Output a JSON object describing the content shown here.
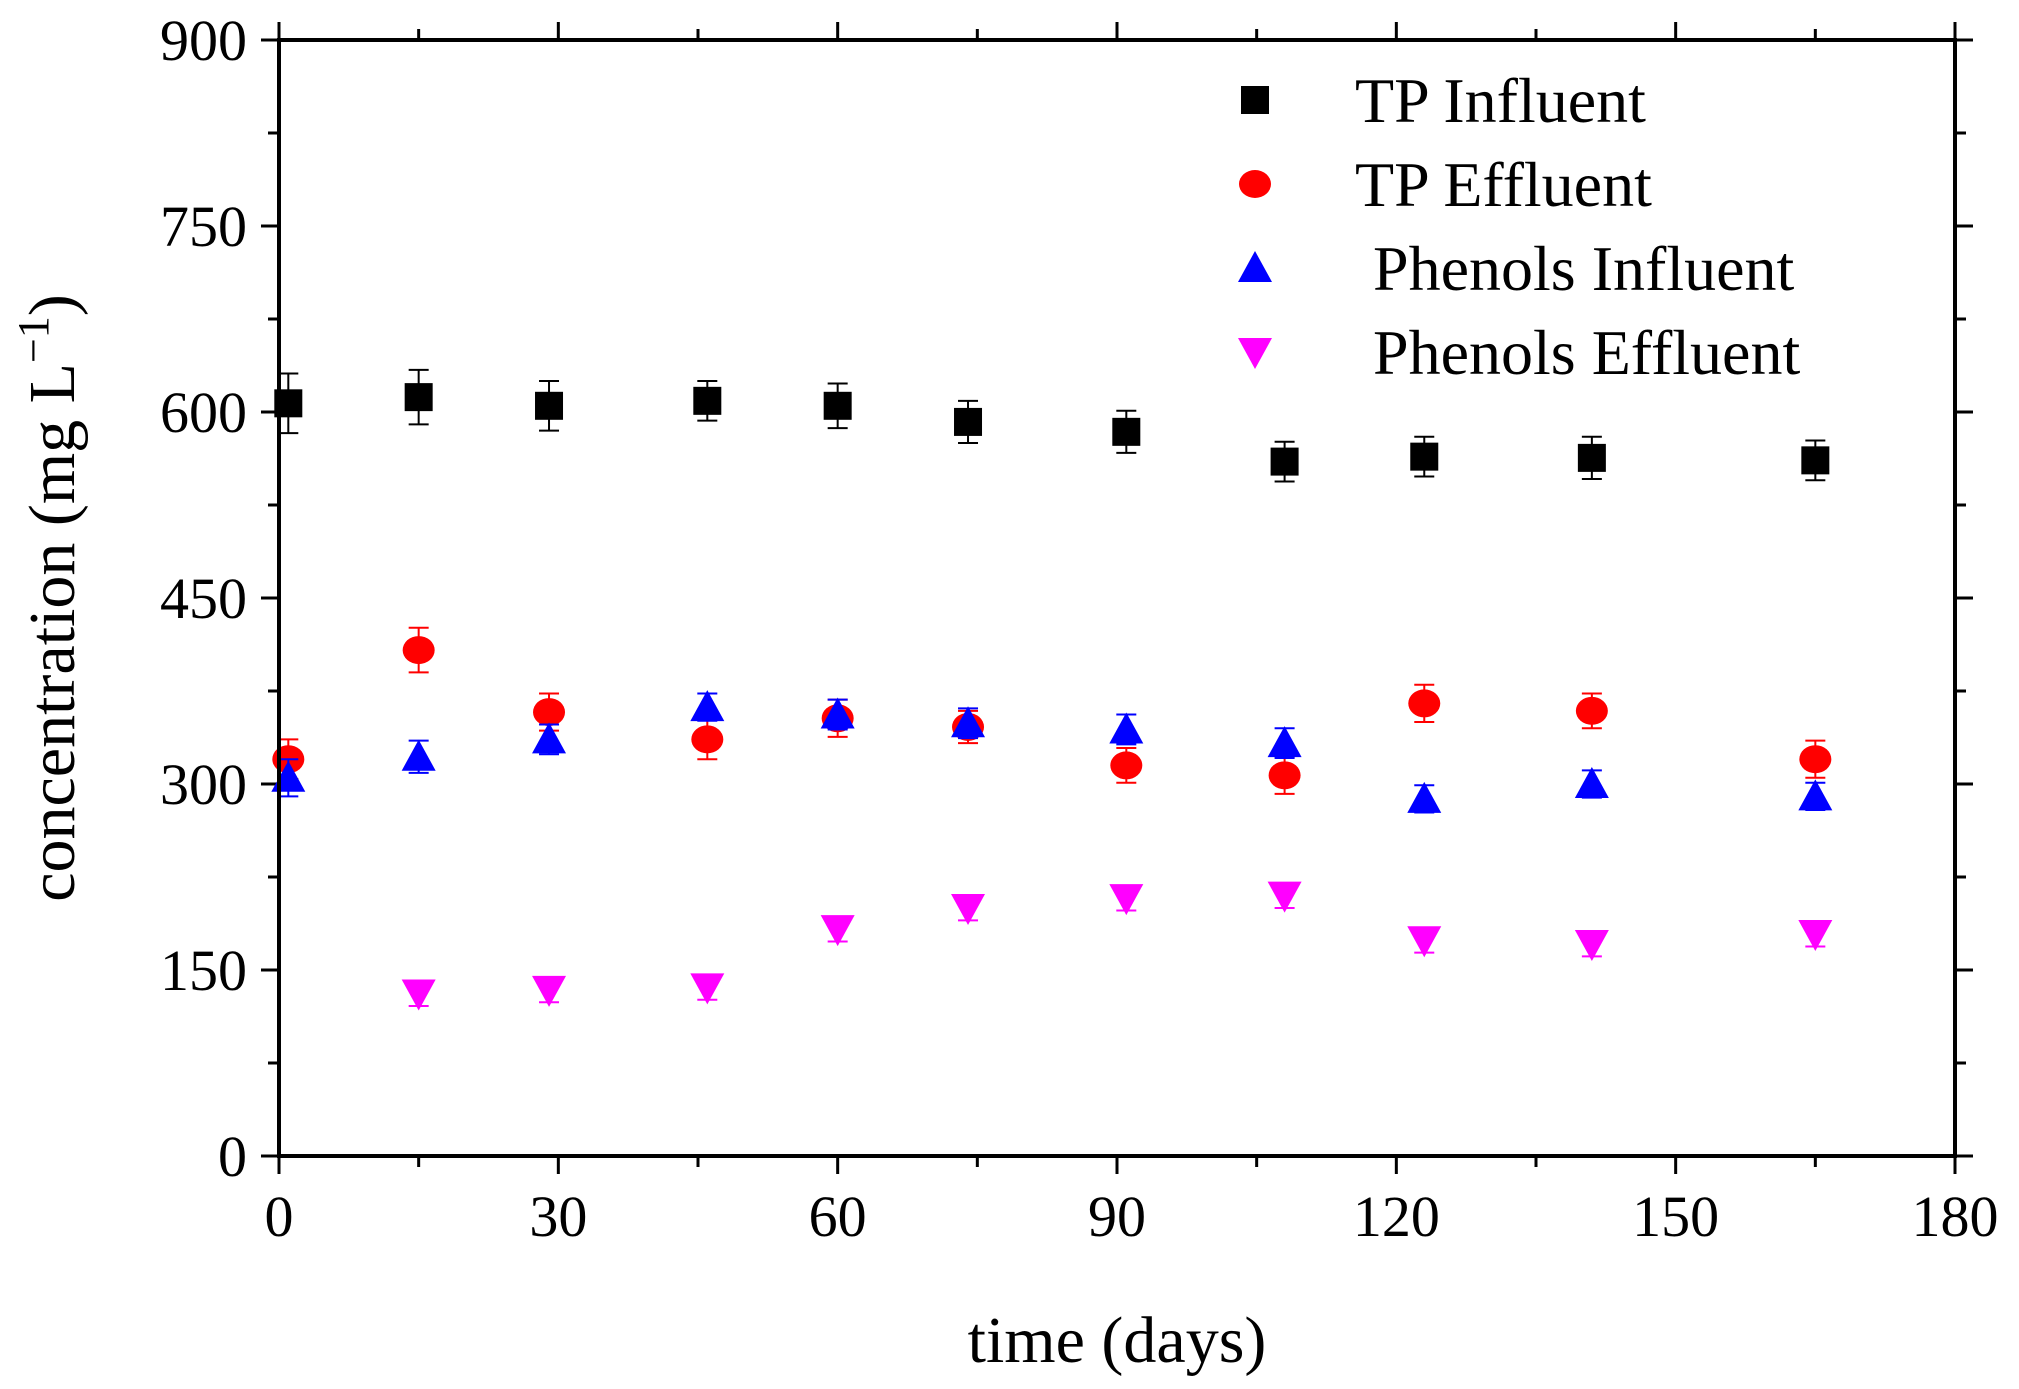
{
  "chart_data": {
    "type": "scatter",
    "title": "",
    "xlabel": "time (days)",
    "ylabel": "concentration (mg L",
    "ylabel_unit_sup": "−1",
    "ylabel_close": ")",
    "xlim": [
      0,
      180
    ],
    "ylim": [
      0,
      900
    ],
    "xticks": [
      0,
      30,
      60,
      90,
      120,
      150,
      180
    ],
    "yticks": [
      0,
      150,
      300,
      450,
      600,
      750,
      900
    ],
    "grid": false,
    "legend_position": "top-right",
    "series": [
      {
        "name": "TP Influent",
        "marker": "square",
        "color": "#000000",
        "x": [
          1,
          15,
          29,
          46,
          60,
          74,
          91,
          108,
          123,
          141,
          165
        ],
        "y": [
          607,
          612,
          605,
          609,
          605,
          592,
          584,
          560,
          564,
          563,
          561
        ],
        "err": [
          24,
          22,
          20,
          16,
          18,
          17,
          17,
          16,
          16,
          17,
          16
        ]
      },
      {
        "name": "TP Effluent",
        "marker": "circle",
        "color": "#ff0000",
        "x": [
          1,
          15,
          29,
          46,
          60,
          74,
          91,
          108,
          123,
          141,
          165
        ],
        "y": [
          320,
          408,
          358,
          336,
          353,
          346,
          315,
          307,
          365,
          359,
          320
        ],
        "err": [
          16,
          18,
          15,
          16,
          15,
          13,
          14,
          15,
          15,
          14,
          15
        ]
      },
      {
        "name": "Phenols Influent",
        "marker": "triangle-up",
        "color": "#0000ff",
        "x": [
          1,
          15,
          29,
          46,
          60,
          74,
          91,
          108,
          123,
          141,
          165
        ],
        "y": [
          305,
          322,
          336,
          362,
          356,
          349,
          344,
          333,
          288,
          300,
          290
        ],
        "err": [
          15,
          13,
          12,
          11,
          12,
          12,
          12,
          12,
          11,
          11,
          11
        ]
      },
      {
        "name": "Phenols Effluent",
        "marker": "triangle-down",
        "color": "#ff00ff",
        "x": [
          15,
          29,
          46,
          60,
          74,
          91,
          108,
          123,
          141,
          165
        ],
        "y": [
          131,
          134,
          136,
          183,
          200,
          208,
          210,
          174,
          171,
          179
        ],
        "err": [
          10,
          10,
          10,
          10,
          10,
          10,
          10,
          10,
          10,
          10
        ]
      }
    ]
  }
}
